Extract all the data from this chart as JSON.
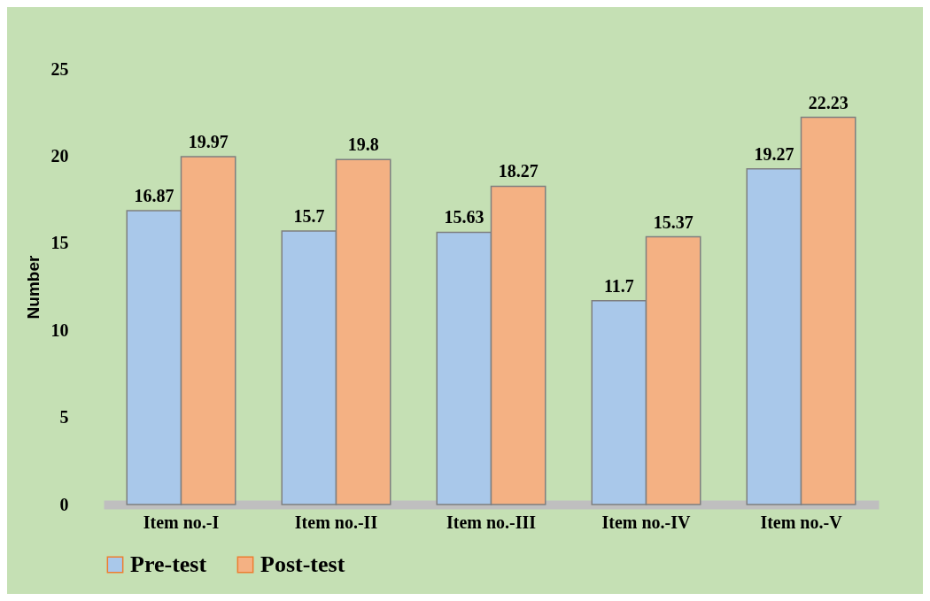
{
  "chart_data": {
    "type": "bar",
    "ylabel": "Number",
    "categories": [
      "Item no.-I",
      "Item no.-II",
      "Item no.-III",
      "Item no.-IV",
      "Item no.-V"
    ],
    "series": [
      {
        "name": "Pre-test",
        "color": "#a9c8ea",
        "values": [
          16.87,
          15.7,
          15.63,
          11.7,
          19.27
        ]
      },
      {
        "name": "Post-test",
        "color": "#f4b183",
        "values": [
          19.97,
          19.8,
          18.27,
          15.37,
          22.23
        ]
      }
    ],
    "ylim": [
      0,
      25
    ],
    "yticks": [
      0,
      5,
      10,
      15,
      20,
      25
    ],
    "grid": false,
    "legend": "bottom",
    "data_labels": true
  }
}
